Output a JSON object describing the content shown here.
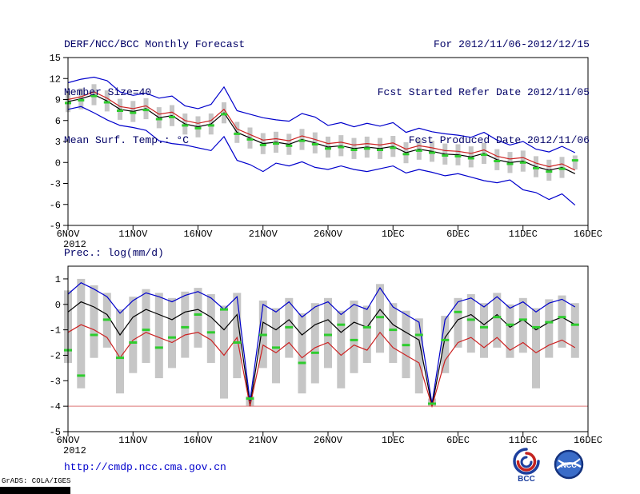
{
  "header": {
    "title": "DERF/NCC/BCC Monthly Forecast",
    "member_size": "Member Size=40",
    "temp_label": "Mean Surf. Temp.: °C",
    "for_range": "For 2012/11/06-2012/12/15",
    "refer_date": "Fcst Started Refer Date 2012/11/05",
    "produced_date": "Fcst Produced Date 2012/11/06"
  },
  "precip_label": "Prec.: log(mm/d)",
  "footer": {
    "url": "http://cmdp.ncc.cma.gov.cn",
    "stamp": "GrADS: COLA/IGES",
    "bcc_label": "BCC",
    "ncc_label": "NCC"
  },
  "colors": {
    "header_text": "#000066",
    "axis_text": "#000000",
    "line_blue": "#0000cc",
    "line_black": "#000000",
    "line_red": "#cc2222",
    "marks_green": "#2ecc2e",
    "bars_gray": "#c6c6c6",
    "floor_red": "#dd7777",
    "url_blue": "#0000cc",
    "logo_blue": "#1d3f9e",
    "logo_red": "#c42420"
  },
  "chart_data": [
    {
      "id": "temperature",
      "type": "line",
      "title": "Mean Surf. Temp.: °C",
      "x_start": "2012-11-06",
      "x_end": "2012-12-15",
      "x_tick_labels": [
        "6NOV",
        "11NOV",
        "16NOV",
        "21NOV",
        "26NOV",
        "1DEC",
        "6DEC",
        "11DEC",
        "16DEC"
      ],
      "x_tick_days": [
        0,
        5,
        10,
        15,
        20,
        25,
        30,
        35,
        40
      ],
      "year_label": "2012",
      "ylim": [
        -9,
        15
      ],
      "yticks": [
        15,
        12,
        9,
        6,
        3,
        0,
        -3,
        -6,
        -9
      ],
      "legend": "off",
      "grid": "off",
      "series": [
        {
          "id": "ensemble-max",
          "type": "line",
          "color": "#0000cc",
          "values": [
            11.4,
            11.9,
            12.2,
            11.7,
            10.1,
            9.6,
            9.9,
            9.2,
            9.5,
            8.1,
            7.7,
            8.3,
            10.8,
            7.4,
            6.9,
            6.4,
            6.1,
            5.9,
            7.0,
            6.5,
            5.3,
            5.7,
            5.1,
            5.6,
            5.2,
            5.7,
            4.3,
            4.9,
            4.4,
            4.1,
            3.9,
            3.6,
            4.3,
            3.2,
            2.5,
            3.0,
            1.9,
            1.5,
            2.3,
            1.4
          ]
        },
        {
          "id": "ensemble-min",
          "type": "line",
          "color": "#0000cc",
          "values": [
            7.6,
            8.0,
            7.1,
            6.1,
            5.3,
            5.0,
            4.6,
            3.1,
            2.7,
            2.5,
            2.1,
            1.7,
            3.7,
            0.3,
            -0.3,
            -1.3,
            -0.1,
            -0.5,
            0.1,
            -0.7,
            -1.0,
            -0.5,
            -1.0,
            -1.3,
            -0.9,
            -0.5,
            -1.5,
            -1.0,
            -1.4,
            -1.9,
            -1.6,
            -2.1,
            -2.6,
            -2.9,
            -2.5,
            -3.9,
            -4.3,
            -5.3,
            -4.5,
            -6.1
          ]
        },
        {
          "id": "ensemble-mean",
          "type": "line",
          "color": "#000000",
          "values": [
            8.7,
            9.1,
            9.7,
            8.8,
            7.6,
            7.3,
            7.7,
            6.4,
            6.7,
            5.5,
            5.1,
            5.5,
            7.1,
            4.3,
            3.5,
            2.7,
            2.9,
            2.6,
            3.3,
            2.8,
            2.2,
            2.4,
            2.0,
            2.2,
            2.0,
            2.3,
            1.4,
            1.9,
            1.6,
            1.2,
            1.1,
            0.8,
            1.3,
            0.4,
            0.0,
            0.2,
            -0.6,
            -1.1,
            -0.7,
            -1.6
          ]
        },
        {
          "id": "control",
          "type": "line",
          "color": "#cc2222",
          "values": [
            9.0,
            9.4,
            10.1,
            9.2,
            8.0,
            7.7,
            8.1,
            6.9,
            7.2,
            6.0,
            5.6,
            6.0,
            7.6,
            4.8,
            4.0,
            3.2,
            3.4,
            3.1,
            3.8,
            3.3,
            2.7,
            2.9,
            2.5,
            2.7,
            2.5,
            2.8,
            1.9,
            2.4,
            2.1,
            1.7,
            1.6,
            1.3,
            1.8,
            0.9,
            0.5,
            0.7,
            -0.1,
            -0.6,
            -0.2,
            -1.1
          ]
        },
        {
          "id": "median-marks",
          "type": "dash",
          "color": "#2ecc2e",
          "values": [
            8.5,
            8.9,
            9.5,
            8.6,
            7.4,
            7.1,
            7.5,
            6.2,
            6.5,
            5.3,
            4.9,
            5.3,
            6.9,
            4.1,
            3.3,
            2.5,
            2.7,
            2.4,
            3.1,
            2.6,
            2.0,
            2.2,
            1.8,
            2.0,
            1.8,
            2.1,
            1.2,
            1.7,
            1.4,
            1.0,
            0.9,
            0.6,
            1.1,
            0.2,
            -0.2,
            0.0,
            -0.8,
            -1.3,
            -0.9,
            0.3
          ]
        },
        {
          "id": "spread-bars",
          "type": "bar",
          "color": "#c6c6c6",
          "high": [
            10.2,
            10.6,
            11.2,
            10.3,
            9.1,
            8.8,
            9.2,
            7.9,
            8.2,
            7.0,
            6.6,
            7.0,
            8.6,
            5.8,
            5.0,
            4.2,
            4.4,
            4.1,
            4.8,
            4.3,
            3.7,
            3.9,
            3.5,
            3.7,
            3.5,
            3.8,
            2.9,
            3.4,
            3.1,
            2.7,
            2.6,
            2.3,
            2.8,
            1.9,
            1.5,
            1.7,
            0.9,
            0.4,
            0.8,
            1.0
          ],
          "low": [
            7.2,
            7.6,
            8.2,
            7.3,
            6.1,
            5.8,
            6.2,
            4.9,
            5.2,
            4.0,
            3.6,
            4.0,
            5.6,
            2.8,
            2.0,
            1.2,
            1.4,
            1.1,
            1.8,
            1.3,
            0.7,
            0.9,
            0.5,
            0.7,
            0.5,
            0.8,
            -0.1,
            0.4,
            0.1,
            -0.3,
            -0.4,
            -0.7,
            -0.2,
            -1.1,
            -1.5,
            -1.3,
            -2.1,
            -2.6,
            -2.2,
            -1.0
          ]
        }
      ]
    },
    {
      "id": "precipitation",
      "type": "line",
      "title": "Prec.: log(mm/d)",
      "x_start": "2012-11-06",
      "x_end": "2012-12-15",
      "x_tick_labels": [
        "6NOV",
        "11NOV",
        "16NOV",
        "21NOV",
        "26NOV",
        "1DEC",
        "6DEC",
        "11DEC",
        "16DEC"
      ],
      "x_tick_days": [
        0,
        5,
        10,
        15,
        20,
        25,
        30,
        35,
        40
      ],
      "year_label": "2012",
      "ylim": [
        -5,
        1.5
      ],
      "yticks": [
        1,
        0,
        -1,
        -2,
        -3,
        -4,
        -5
      ],
      "legend": "off",
      "grid": "off",
      "floor_line": {
        "value": -4,
        "color": "#dd7777"
      },
      "series": [
        {
          "id": "ensemble-max",
          "type": "line",
          "color": "#0000cc",
          "values": [
            0.4,
            0.85,
            0.6,
            0.3,
            -0.35,
            0.15,
            0.45,
            0.3,
            0.1,
            0.35,
            0.5,
            0.25,
            -0.2,
            0.3,
            -3.8,
            0.0,
            -0.3,
            0.1,
            -0.5,
            -0.1,
            0.1,
            -0.4,
            0.0,
            -0.2,
            0.65,
            -0.1,
            -0.4,
            -0.7,
            -3.9,
            -0.6,
            0.1,
            0.25,
            -0.1,
            0.3,
            -0.15,
            0.1,
            -0.3,
            0.05,
            0.2,
            -0.1
          ]
        },
        {
          "id": "ensemble-mean",
          "type": "line",
          "color": "#000000",
          "values": [
            -0.3,
            0.1,
            -0.1,
            -0.4,
            -1.2,
            -0.5,
            -0.2,
            -0.4,
            -0.6,
            -0.3,
            -0.2,
            -0.5,
            -1.0,
            -0.4,
            -4.0,
            -0.7,
            -1.0,
            -0.6,
            -1.2,
            -0.8,
            -0.6,
            -1.1,
            -0.7,
            -0.9,
            -0.2,
            -0.8,
            -1.1,
            -1.4,
            -4.0,
            -1.3,
            -0.6,
            -0.4,
            -0.8,
            -0.4,
            -0.9,
            -0.6,
            -1.0,
            -0.7,
            -0.5,
            -0.8
          ]
        },
        {
          "id": "control",
          "type": "line",
          "color": "#cc2222",
          "values": [
            -1.1,
            -0.8,
            -1.0,
            -1.3,
            -2.1,
            -1.4,
            -1.1,
            -1.3,
            -1.5,
            -1.2,
            -1.1,
            -1.4,
            -2.0,
            -1.3,
            -4.0,
            -1.6,
            -1.9,
            -1.5,
            -2.1,
            -1.7,
            -1.5,
            -2.0,
            -1.6,
            -1.8,
            -1.1,
            -1.7,
            -2.0,
            -2.3,
            -4.0,
            -2.2,
            -1.5,
            -1.3,
            -1.7,
            -1.3,
            -1.8,
            -1.5,
            -1.9,
            -1.6,
            -1.4,
            -1.7
          ]
        },
        {
          "id": "median-marks",
          "type": "dash",
          "color": "#2ecc2e",
          "values": [
            -1.8,
            -2.8,
            -1.2,
            -0.6,
            -2.1,
            -1.5,
            -1.0,
            -1.7,
            -1.3,
            -0.9,
            -0.4,
            -1.1,
            -0.2,
            -1.5,
            -3.7,
            -1.2,
            -1.7,
            -0.9,
            -2.3,
            -1.9,
            -1.2,
            -0.8,
            -1.4,
            -0.9,
            -0.5,
            -1.0,
            -1.6,
            -1.2,
            -3.9,
            -1.4,
            -0.3,
            -0.6,
            -0.9,
            -0.5,
            -0.8,
            -0.6,
            -0.9,
            -0.7,
            -0.5,
            -0.8
          ]
        },
        {
          "id": "spread-bars",
          "type": "bar",
          "color": "#c6c6c6",
          "high": [
            0.55,
            1.0,
            0.75,
            0.45,
            -0.2,
            0.3,
            0.6,
            0.45,
            0.25,
            0.5,
            0.65,
            0.4,
            -0.05,
            0.45,
            -3.6,
            0.15,
            -0.15,
            0.25,
            -0.35,
            0.05,
            0.25,
            -0.25,
            0.15,
            -0.05,
            0.8,
            0.05,
            -0.25,
            -0.55,
            -3.7,
            -0.45,
            0.25,
            0.4,
            0.05,
            0.45,
            0.0,
            0.25,
            -0.15,
            0.2,
            0.35,
            0.05
          ],
          "low": [
            -2.3,
            -3.3,
            -2.1,
            -1.7,
            -3.5,
            -2.7,
            -2.3,
            -2.9,
            -2.5,
            -2.1,
            -1.7,
            -2.3,
            -3.7,
            -2.9,
            -4.0,
            -2.5,
            -3.1,
            -2.1,
            -3.5,
            -3.1,
            -2.5,
            -3.3,
            -2.7,
            -2.3,
            -1.9,
            -2.3,
            -2.9,
            -3.5,
            -4.0,
            -2.7,
            -1.7,
            -1.9,
            -2.1,
            -1.7,
            -2.1,
            -1.9,
            -3.3,
            -2.1,
            -1.7,
            -2.1
          ]
        }
      ]
    }
  ]
}
